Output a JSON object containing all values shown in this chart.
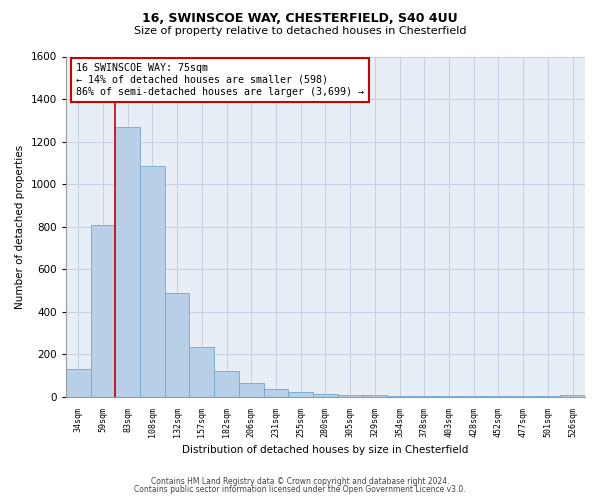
{
  "title1": "16, SWINSCOE WAY, CHESTERFIELD, S40 4UU",
  "title2": "Size of property relative to detached houses in Chesterfield",
  "xlabel": "Distribution of detached houses by size in Chesterfield",
  "ylabel": "Number of detached properties",
  "categories": [
    "34sqm",
    "59sqm",
    "83sqm",
    "108sqm",
    "132sqm",
    "157sqm",
    "182sqm",
    "206sqm",
    "231sqm",
    "255sqm",
    "280sqm",
    "305sqm",
    "329sqm",
    "354sqm",
    "378sqm",
    "403sqm",
    "428sqm",
    "452sqm",
    "477sqm",
    "501sqm",
    "526sqm"
  ],
  "values": [
    130,
    810,
    1270,
    1085,
    490,
    235,
    120,
    65,
    38,
    25,
    15,
    10,
    10,
    5,
    5,
    5,
    5,
    5,
    5,
    5,
    10
  ],
  "bar_color": "#b8cfe8",
  "bar_edge_color": "#6fa8d0",
  "grid_color": "#c5cfe0",
  "background_color": "#ffffff",
  "plot_bg_color": "#e8eef5",
  "vline_x": 1.5,
  "vline_color": "#cc0000",
  "annotation_line1": "16 SWINSCOE WAY: 75sqm",
  "annotation_line2": "← 14% of detached houses are smaller (598)",
  "annotation_line3": "86% of semi-detached houses are larger (3,699) →",
  "annotation_box_color": "#cc0000",
  "ylim": [
    0,
    1600
  ],
  "yticks": [
    0,
    200,
    400,
    600,
    800,
    1000,
    1200,
    1400,
    1600
  ],
  "footnote1": "Contains HM Land Registry data © Crown copyright and database right 2024.",
  "footnote2": "Contains public sector information licensed under the Open Government Licence v3.0."
}
